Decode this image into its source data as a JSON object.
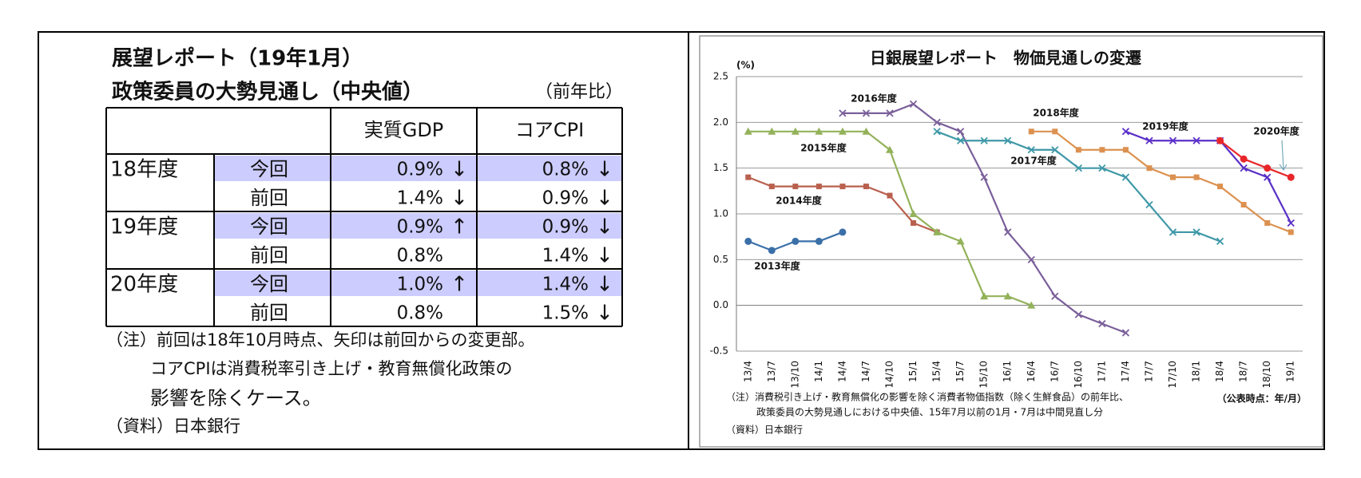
{
  "table": {
    "title": [
      "展望レポート（19年1月）",
      "政策委員の大勢見通し（中央値）"
    ],
    "unit": "（前年比）",
    "headers": [
      "実質GDP",
      "コアCPI"
    ],
    "groups": [
      {
        "year": "18年度",
        "rows": [
          {
            "label": "今回",
            "gdp": "0.9%",
            "gdp_arrow": "↓",
            "cpi": "0.8%",
            "cpi_arrow": "↓"
          },
          {
            "label": "前回",
            "gdp": "1.4%",
            "gdp_arrow": "↓",
            "cpi": "0.9%",
            "cpi_arrow": "↓"
          }
        ]
      },
      {
        "year": "19年度",
        "rows": [
          {
            "label": "今回",
            "gdp": "0.9%",
            "gdp_arrow": "↑",
            "cpi": "0.9%",
            "cpi_arrow": "↓"
          },
          {
            "label": "前回",
            "gdp": "0.8%",
            "cpi": "1.4%",
            "cpi_arrow": "↓"
          }
        ]
      },
      {
        "year": "20年度",
        "rows": [
          {
            "label": "今回",
            "gdp": "1.0%",
            "gdp_arrow": "↑",
            "cpi": "1.4%",
            "cpi_arrow": "↓"
          },
          {
            "label": "前回",
            "gdp": "0.8%",
            "cpi": "1.5%",
            "cpi_arrow": "↓"
          }
        ]
      }
    ],
    "notes": [
      "（注）前回は18年10月時点、矢印は前回からの変更部。",
      "コアCPIは消費税率引き上げ・教育無償化政策の",
      "影響を除くケース。",
      "（資料）日本銀行"
    ]
  },
  "chart_data": {
    "type": "line",
    "title": "日銀展望レポート　物価見通しの変遷",
    "y_label": "(%)",
    "categories": [
      "13/4",
      "13/7",
      "13/10",
      "14/1",
      "14/4",
      "14/7",
      "14/10",
      "15/1",
      "15/4",
      "15/7",
      "15/10",
      "16/1",
      "16/4",
      "16/7",
      "16/10",
      "17/1",
      "17/4",
      "17/7",
      "17/10",
      "18/1",
      "18/4",
      "18/7",
      "18/10",
      "19/1"
    ],
    "ylim": [
      -0.5,
      2.5
    ],
    "yticks": [
      {
        "value": 2.5,
        "label": "2.5"
      },
      {
        "value": 2,
        "label": "2.0"
      },
      {
        "value": 1.5,
        "label": "1.5"
      },
      {
        "value": 1,
        "label": "1.0"
      },
      {
        "value": 0.5,
        "label": "0.5"
      },
      {
        "value": 0,
        "label": "0.0"
      },
      {
        "value": -0.5,
        "label": "-0.5"
      }
    ],
    "grid": true,
    "series": [
      {
        "name": "2013年度",
        "color": "#3b6fa8",
        "marker": "circle",
        "values": [
          0.7,
          0.6,
          0.7,
          0.7,
          0.8,
          null,
          null,
          null,
          null,
          null,
          null,
          null,
          null,
          null,
          null,
          null,
          null,
          null,
          null,
          null,
          null,
          null,
          null,
          null
        ]
      },
      {
        "name": "2014年度",
        "color": "#b9604e",
        "marker": "square",
        "values": [
          1.4,
          1.3,
          1.3,
          1.3,
          1.3,
          1.3,
          1.2,
          0.9,
          0.8,
          null,
          null,
          null,
          null,
          null,
          null,
          null,
          null,
          null,
          null,
          null,
          null,
          null,
          null,
          null
        ]
      },
      {
        "name": "2015年度",
        "color": "#93b25a",
        "marker": "triangle",
        "values": [
          1.9,
          1.9,
          1.9,
          1.9,
          1.9,
          1.9,
          1.7,
          1.0,
          0.8,
          0.7,
          0.1,
          0.1,
          0.0,
          null,
          null,
          null,
          null,
          null,
          null,
          null,
          null,
          null,
          null,
          null
        ]
      },
      {
        "name": "2016年度",
        "color": "#7a5f9a",
        "marker": "x",
        "values": [
          null,
          null,
          null,
          null,
          2.1,
          2.1,
          2.1,
          2.2,
          2.0,
          1.9,
          1.4,
          0.8,
          0.5,
          0.1,
          -0.1,
          -0.2,
          -0.3,
          null,
          null,
          null,
          null,
          null,
          null,
          null
        ]
      },
      {
        "name": "2017年度",
        "color": "#3f98a8",
        "marker": "x",
        "values": [
          null,
          null,
          null,
          null,
          null,
          null,
          null,
          null,
          1.9,
          1.8,
          1.8,
          1.8,
          1.7,
          1.7,
          1.5,
          1.5,
          1.4,
          1.1,
          0.8,
          0.8,
          0.7,
          null,
          null,
          null
        ]
      },
      {
        "name": "2018年度",
        "color": "#dc9150",
        "marker": "square",
        "values": [
          null,
          null,
          null,
          null,
          null,
          null,
          null,
          null,
          null,
          null,
          null,
          null,
          1.9,
          1.9,
          1.7,
          1.7,
          1.7,
          1.5,
          1.4,
          1.4,
          1.3,
          1.1,
          0.9,
          0.8
        ]
      },
      {
        "name": "2019年度",
        "color": "#5a2fc8",
        "marker": "x",
        "values": [
          null,
          null,
          null,
          null,
          null,
          null,
          null,
          null,
          null,
          null,
          null,
          null,
          null,
          null,
          null,
          null,
          1.9,
          1.8,
          1.8,
          1.8,
          1.8,
          1.5,
          1.4,
          0.9
        ]
      },
      {
        "name": "2020年度",
        "color": "#e8262a",
        "marker": "circle",
        "values": [
          null,
          null,
          null,
          null,
          null,
          null,
          null,
          null,
          null,
          null,
          null,
          null,
          null,
          null,
          null,
          null,
          null,
          null,
          null,
          null,
          1.8,
          1.6,
          1.5,
          1.4
        ]
      }
    ],
    "notes": [
      "（注）消費税引き上げ・教育無償化の影響を除く消費者物価指数（除く生鮮食品）の前年比、",
      "政策委員の大勢見通しにおける中央値、15年7月以前の1月・7月は中間見直し分",
      "（資料）日本銀行"
    ],
    "period_note": "（公表時点：年/月）"
  }
}
